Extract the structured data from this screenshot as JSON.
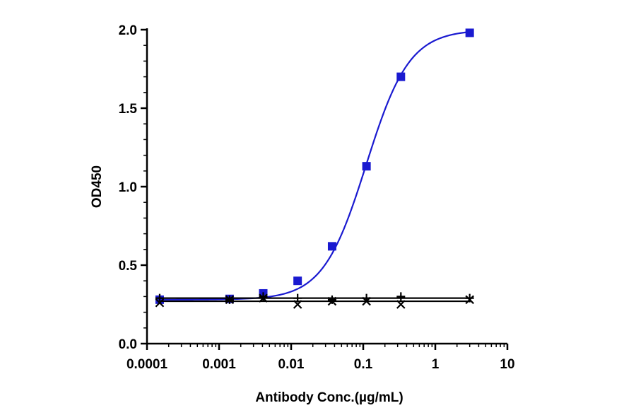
{
  "chart_data": {
    "type": "scatter",
    "title": "",
    "xlabel": "Antibody Conc.(µg/mL)",
    "ylabel": "OD450",
    "x_scale": "log",
    "xlim": [
      0.0001,
      10
    ],
    "ylim": [
      0,
      2.0
    ],
    "x_ticks": [
      {
        "value": 0.0001,
        "label": "0.0001"
      },
      {
        "value": 0.001,
        "label": "0.001"
      },
      {
        "value": 0.01,
        "label": "0.01"
      },
      {
        "value": 0.1,
        "label": "0.1"
      },
      {
        "value": 1,
        "label": "1"
      },
      {
        "value": 10,
        "label": "10"
      }
    ],
    "y_ticks": [
      {
        "value": 0,
        "label": "0.0"
      },
      {
        "value": 0.5,
        "label": "0.5"
      },
      {
        "value": 1.0,
        "label": "1.0"
      },
      {
        "value": 1.5,
        "label": "1.5"
      },
      {
        "value": 2.0,
        "label": "2.0"
      }
    ],
    "grid": false,
    "legend": "none",
    "series": [
      {
        "marker": "square",
        "color": "#1a1ad0",
        "fit": "sigmoid",
        "fit_params": {
          "bottom": 0.28,
          "top": 2.0,
          "ec50": 0.11,
          "hill": 1.45
        },
        "x": [
          0.00015,
          0.0014,
          0.0041,
          0.0123,
          0.037,
          0.111,
          0.333,
          3.0
        ],
        "y": [
          0.28,
          0.285,
          0.32,
          0.4,
          0.62,
          1.13,
          1.7,
          1.98
        ]
      },
      {
        "marker": "plus",
        "color": "#000000",
        "fit": "flat",
        "fit_level": 0.29,
        "x": [
          0.00015,
          0.0014,
          0.0041,
          0.0123,
          0.037,
          0.111,
          0.333,
          3.0
        ],
        "y": [
          0.29,
          0.28,
          0.3,
          0.29,
          0.28,
          0.29,
          0.3,
          0.29
        ]
      },
      {
        "marker": "x",
        "color": "#000000",
        "fit": "flat",
        "fit_level": 0.27,
        "x": [
          0.00015,
          0.0014,
          0.0041,
          0.0123,
          0.037,
          0.111,
          0.333,
          3.0
        ],
        "y": [
          0.26,
          0.28,
          0.29,
          0.25,
          0.27,
          0.27,
          0.25,
          0.28
        ]
      }
    ]
  }
}
